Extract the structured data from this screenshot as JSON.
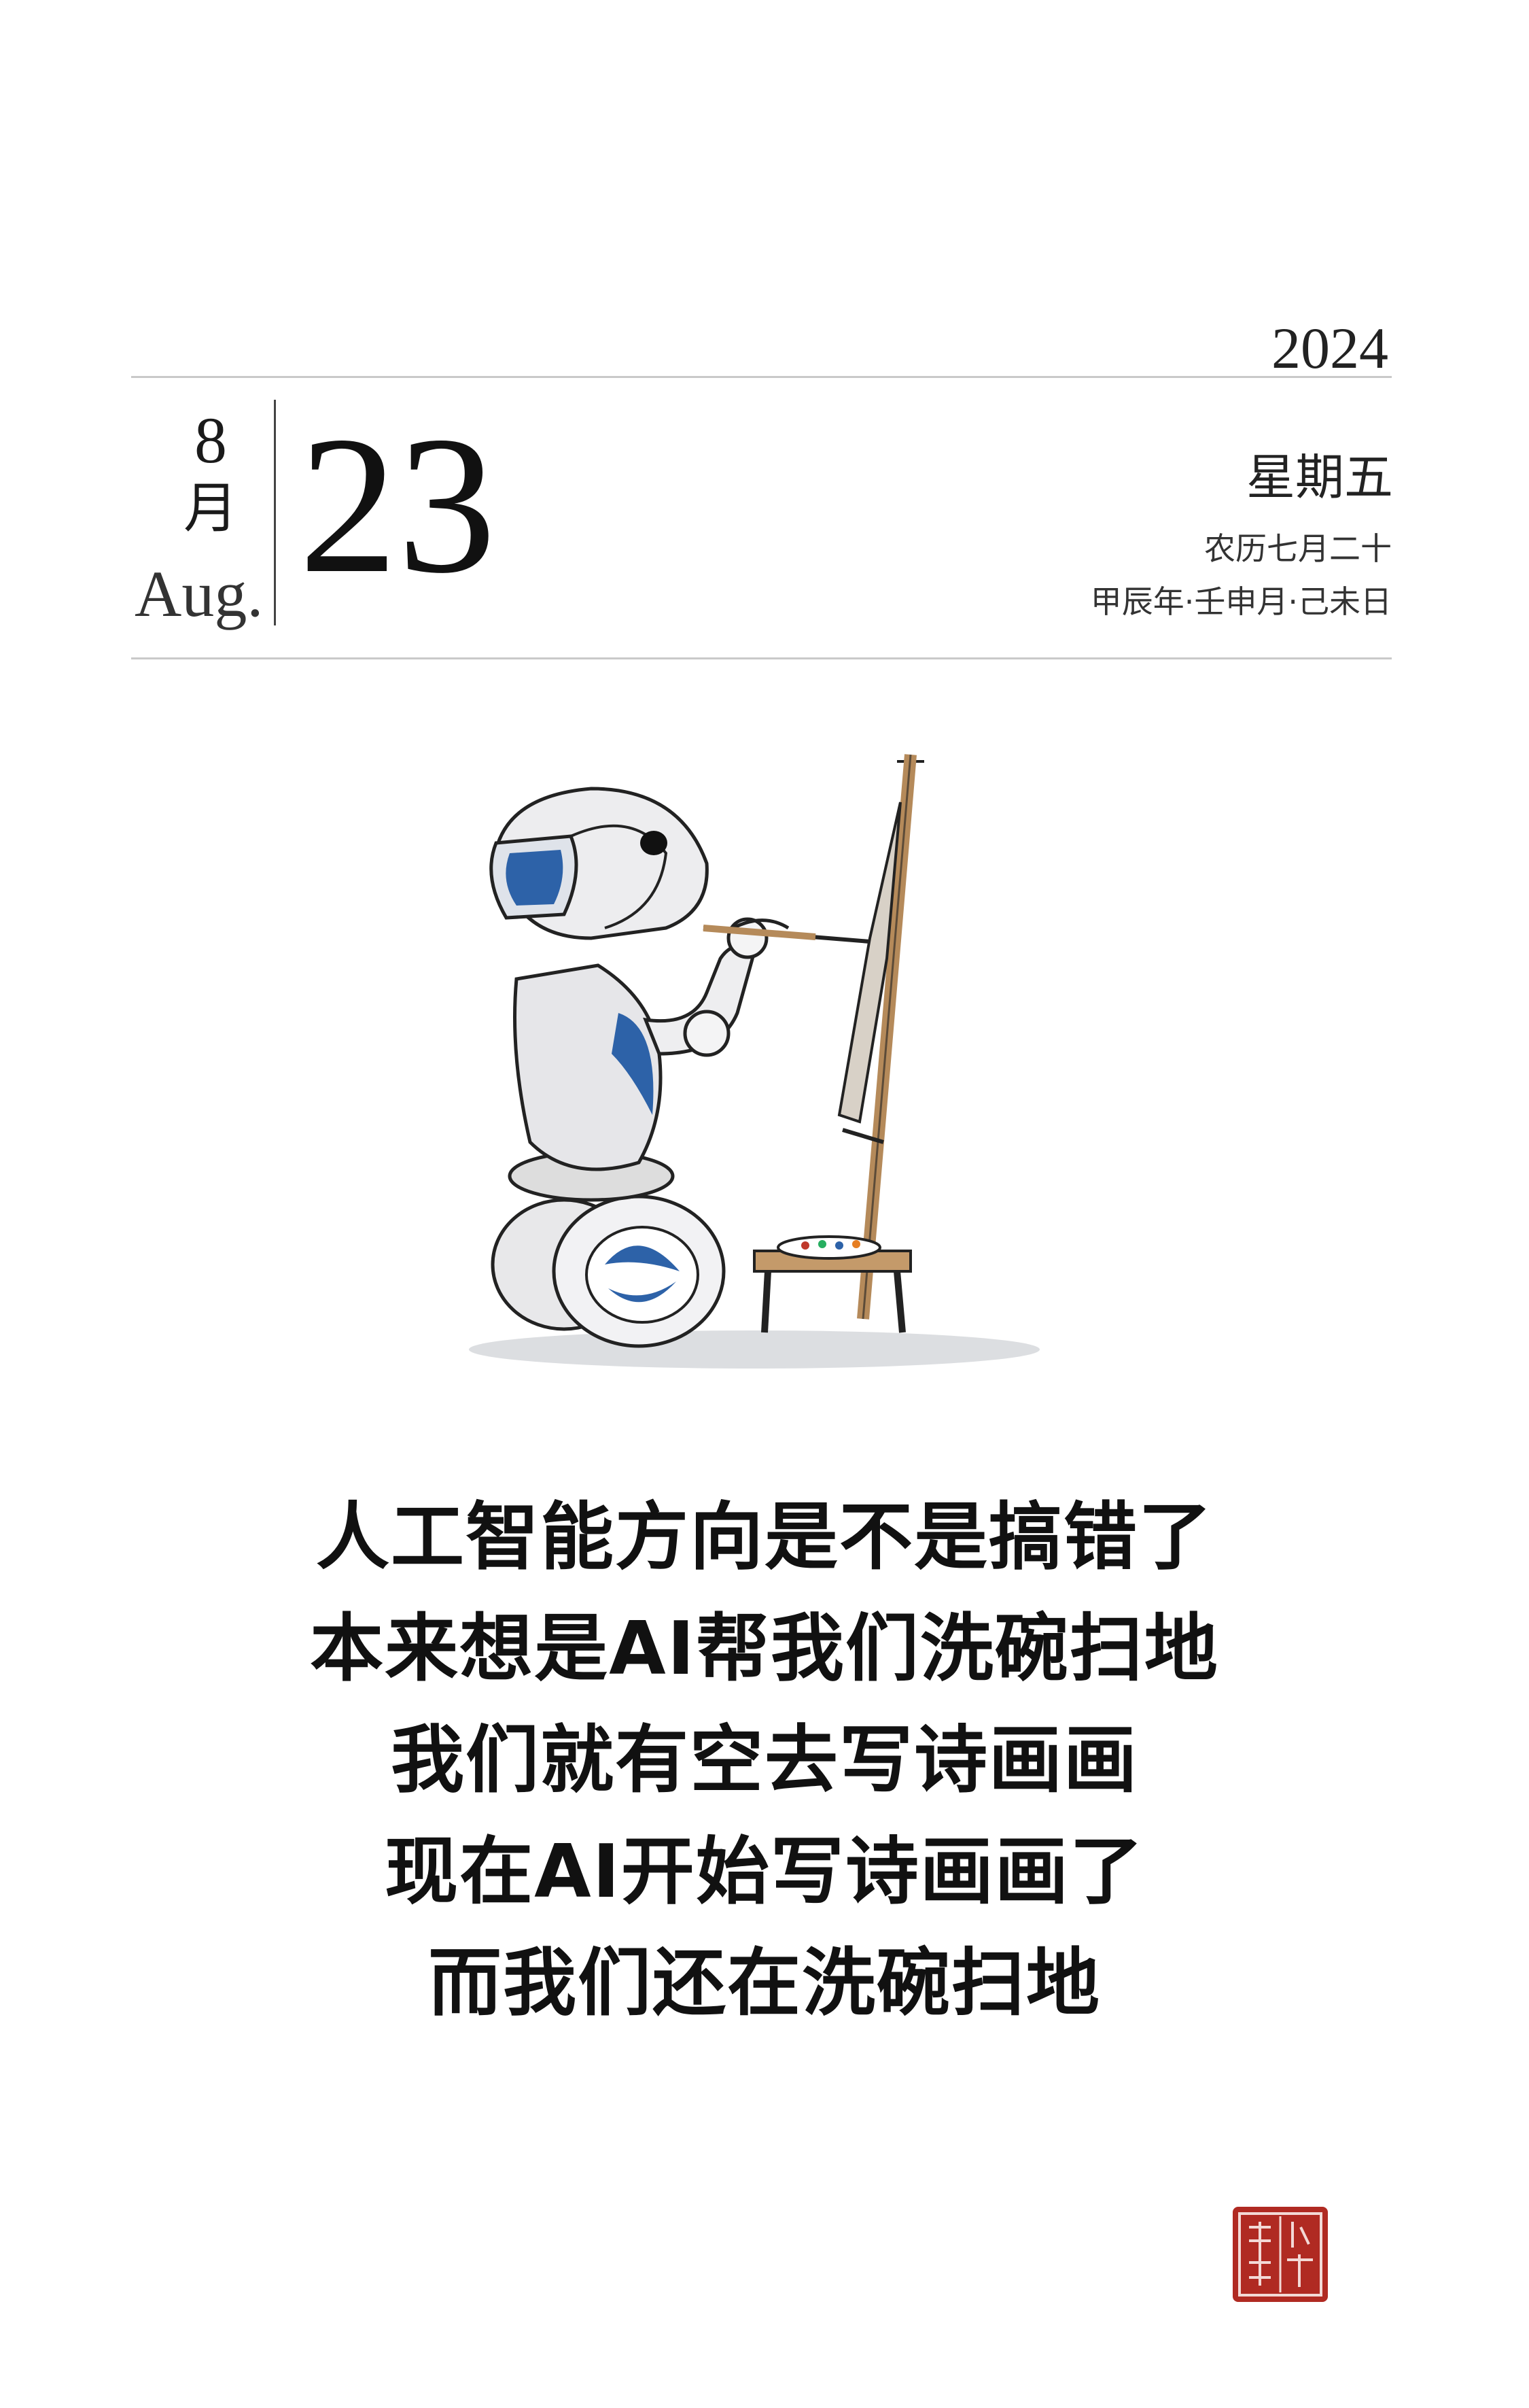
{
  "header": {
    "year": "2024",
    "month_number": "8",
    "month_cn": "月",
    "month_en": "Aug.",
    "day": "23",
    "weekday": "星期五",
    "lunar_date": "农历七月二十",
    "ganzhi": "甲辰年·壬申月·己未日"
  },
  "illustration": {
    "subject": "robot-painting-at-easel-icon"
  },
  "poem": {
    "lines": [
      "人工智能方向是不是搞错了",
      "本来想是AI帮我们洗碗扫地",
      "我们就有空去写诗画画",
      "现在AI开始写诗画画了",
      "而我们还在洗碗扫地"
    ]
  },
  "seal": {
    "text": "小林漫画",
    "color": "#b02a22"
  },
  "colors": {
    "robot_blue": "#2d62a8",
    "easel_wood": "#b58a5a",
    "shadow_gray": "#c8cbd0"
  }
}
